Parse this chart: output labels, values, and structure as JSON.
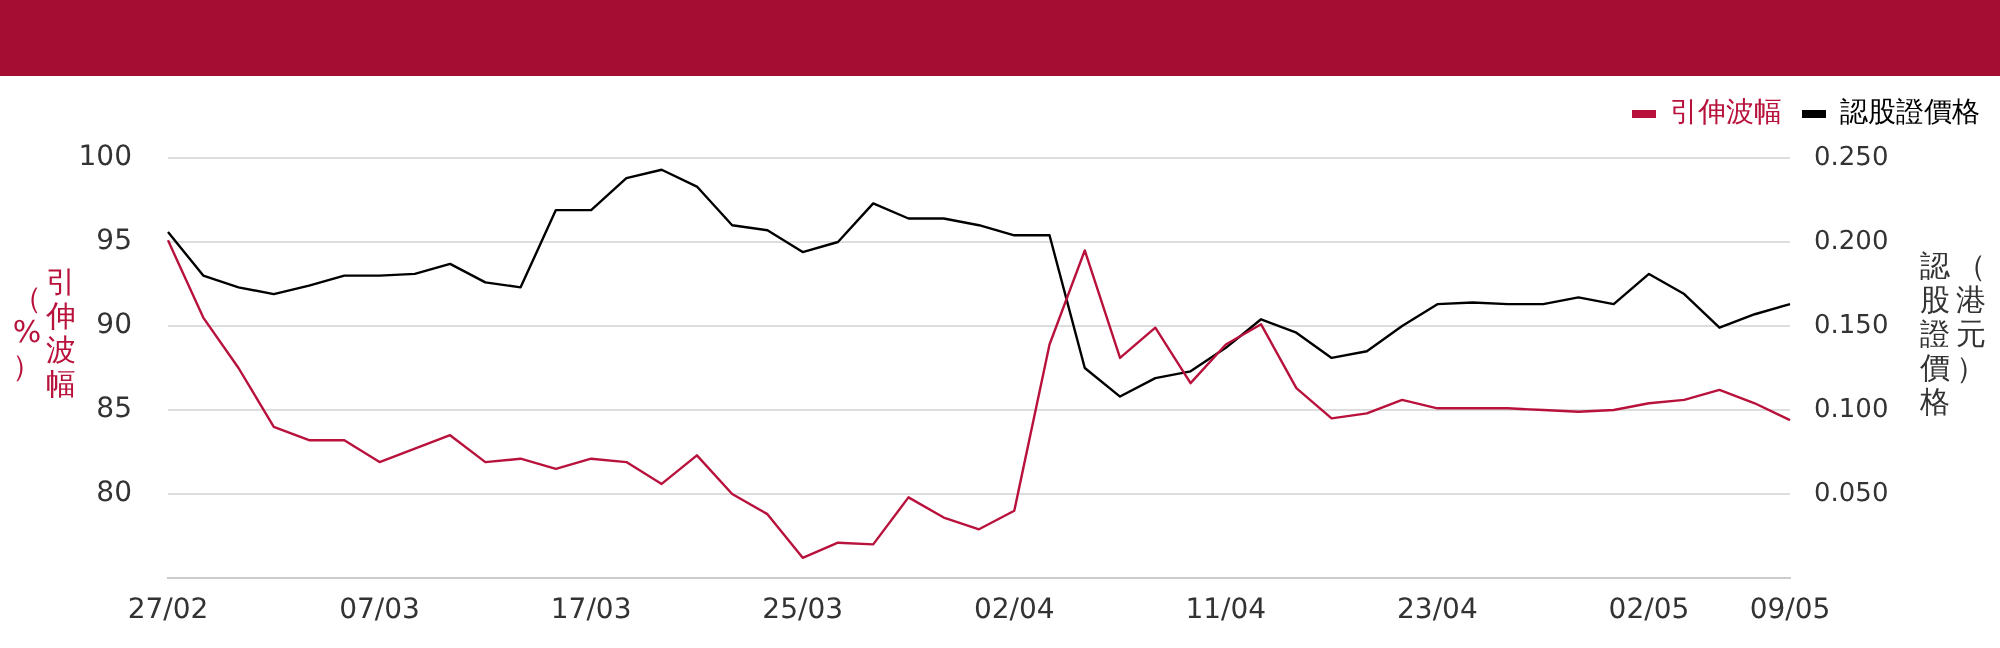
{
  "chart_data": {
    "type": "line",
    "categories": [
      "27/02",
      null,
      null,
      null,
      null,
      null,
      "07/03",
      null,
      null,
      null,
      null,
      null,
      "17/03",
      null,
      null,
      null,
      null,
      null,
      "25/03",
      null,
      null,
      null,
      null,
      null,
      "02/04",
      null,
      null,
      null,
      null,
      null,
      "11/04",
      null,
      null,
      null,
      null,
      null,
      "23/04",
      null,
      null,
      null,
      null,
      null,
      "02/05",
      null,
      null,
      null,
      "09/05"
    ],
    "series": [
      {
        "name": "引伸波幅",
        "color": "#b8123c",
        "values": [
          95.1,
          90.5,
          87.5,
          84.0,
          83.2,
          83.2,
          81.9,
          82.7,
          83.5,
          81.9,
          82.1,
          81.5,
          82.1,
          81.9,
          80.6,
          82.3,
          80.0,
          78.8,
          76.2,
          77.1,
          77.0,
          79.8,
          78.6,
          77.9,
          79.0,
          88.9,
          94.5,
          88.1,
          89.9,
          86.6,
          88.9,
          90.1,
          86.3,
          84.5,
          84.8,
          85.6,
          85.1,
          85.1,
          85.1,
          85.0,
          84.9,
          85.0,
          85.4,
          85.6,
          86.2,
          85.4,
          84.4
        ]
      },
      {
        "name": "認股證價格",
        "color": "#000000",
        "axis": "y2",
        "values": [
          0.206,
          0.18,
          0.173,
          0.169,
          0.174,
          0.18,
          0.18,
          0.181,
          0.187,
          0.176,
          0.173,
          0.219,
          0.219,
          0.238,
          0.243,
          0.233,
          0.21,
          0.207,
          0.194,
          0.2,
          0.223,
          0.214,
          0.214,
          0.21,
          0.204,
          0.204,
          0.125,
          0.108,
          0.119,
          0.123,
          0.137,
          0.154,
          0.146,
          0.131,
          0.135,
          0.15,
          0.163,
          0.164,
          0.163,
          0.163,
          0.167,
          0.163,
          0.181,
          0.169,
          0.149,
          0.157,
          0.163
        ]
      }
    ],
    "ylabel": "引伸波幅（%）",
    "y2label": "認股證價格（港元）",
    "ylim": [
      75,
      100
    ],
    "yticks": [
      80,
      85,
      90,
      95,
      100
    ],
    "y2lim": [
      0,
      0.25
    ],
    "y2ticks": [
      {
        "value": 0.05,
        "label": "0.050"
      },
      {
        "value": 0.1,
        "label": "0.100"
      },
      {
        "value": 0.15,
        "label": "0.150"
      },
      {
        "value": 0.2,
        "label": "0.200"
      },
      {
        "value": 0.25,
        "label": "0.250"
      }
    ],
    "grid": "y",
    "legend": "top right",
    "marker": "none"
  }
}
